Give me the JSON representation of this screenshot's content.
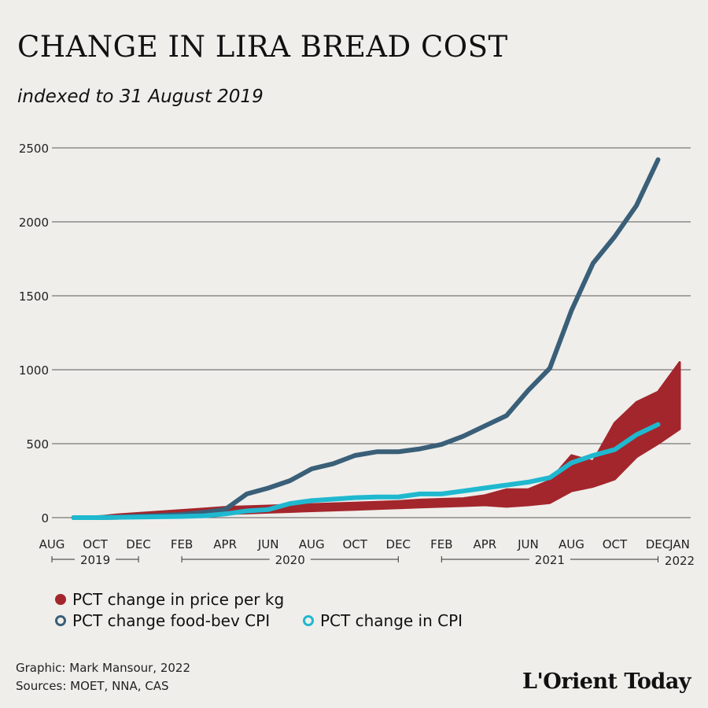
{
  "header": {
    "title": "CHANGE IN LIRA BREAD COST",
    "subtitle": "indexed to 31 August 2019"
  },
  "chart_data": {
    "type": "line",
    "title": "CHANGE IN LIRA BREAD COST",
    "subtitle": "indexed to 31 August 2019",
    "ylim": [
      0,
      2500
    ],
    "yticks": [
      0,
      500,
      1000,
      1500,
      2000,
      2500
    ],
    "grid": true,
    "x_tick_labels": [
      "AUG",
      "OCT",
      "DEC",
      "FEB",
      "APR",
      "JUN",
      "AUG",
      "OCT",
      "DEC",
      "FEB",
      "APR",
      "JUN",
      "AUG",
      "OCT",
      "DEC",
      "JAN"
    ],
    "x_tick_dates": [
      "2019-08",
      "2019-10",
      "2019-12",
      "2020-02",
      "2020-04",
      "2020-06",
      "2020-08",
      "2020-10",
      "2020-12",
      "2021-02",
      "2021-04",
      "2021-06",
      "2021-08",
      "2021-10",
      "2021-12",
      "2022-01"
    ],
    "year_labels": [
      "2019",
      "2020",
      "2021",
      "2022"
    ],
    "series": [
      {
        "name": "PCT change food-bev CPI",
        "style": "line",
        "color": "#3a5f78",
        "x": [
          "2019-09",
          "2019-10",
          "2019-11",
          "2019-12",
          "2020-01",
          "2020-02",
          "2020-03",
          "2020-04",
          "2020-05",
          "2020-06",
          "2020-07",
          "2020-08",
          "2020-09",
          "2020-10",
          "2020-11",
          "2020-12",
          "2021-01",
          "2021-02",
          "2021-03",
          "2021-04",
          "2021-05",
          "2021-06",
          "2021-07",
          "2021-08",
          "2021-09",
          "2021-10",
          "2021-11",
          "2021-12"
        ],
        "values": [
          0,
          0,
          2,
          10,
          15,
          22,
          35,
          55,
          160,
          200,
          250,
          330,
          365,
          420,
          445,
          445,
          465,
          495,
          550,
          620,
          690,
          860,
          1010,
          1400,
          1720,
          1900,
          2110,
          2420
        ]
      },
      {
        "name": "PCT change in CPI",
        "style": "line",
        "color": "#1fb8cf",
        "x": [
          "2019-09",
          "2019-10",
          "2019-11",
          "2019-12",
          "2020-01",
          "2020-02",
          "2020-03",
          "2020-04",
          "2020-05",
          "2020-06",
          "2020-07",
          "2020-08",
          "2020-09",
          "2020-10",
          "2020-11",
          "2020-12",
          "2021-01",
          "2021-02",
          "2021-03",
          "2021-04",
          "2021-05",
          "2021-06",
          "2021-07",
          "2021-08",
          "2021-09",
          "2021-10",
          "2021-11",
          "2021-12"
        ],
        "values": [
          0,
          0,
          2,
          4,
          6,
          8,
          12,
          25,
          45,
          55,
          95,
          115,
          125,
          135,
          140,
          140,
          160,
          160,
          180,
          200,
          220,
          240,
          270,
          370,
          420,
          460,
          560,
          630
        ]
      },
      {
        "name": "PCT change in price per kg",
        "style": "band",
        "color": "#a3262c",
        "x": [
          "2019-09",
          "2019-10",
          "2019-11",
          "2019-12",
          "2020-01",
          "2020-02",
          "2020-03",
          "2020-04",
          "2020-05",
          "2020-06",
          "2020-07",
          "2020-08",
          "2020-09",
          "2020-10",
          "2020-11",
          "2020-12",
          "2021-01",
          "2021-02",
          "2021-03",
          "2021-04",
          "2021-05",
          "2021-06",
          "2021-07",
          "2021-08",
          "2021-09",
          "2021-10",
          "2021-11",
          "2021-12",
          "2022-01"
        ],
        "low": [
          0,
          0,
          5,
          10,
          12,
          15,
          20,
          25,
          30,
          35,
          40,
          45,
          50,
          55,
          60,
          65,
          70,
          75,
          80,
          85,
          75,
          85,
          100,
          180,
          210,
          260,
          410,
          500,
          600
        ],
        "high": [
          0,
          5,
          20,
          30,
          40,
          50,
          60,
          70,
          75,
          80,
          85,
          90,
          95,
          100,
          105,
          110,
          120,
          125,
          130,
          150,
          190,
          190,
          250,
          420,
          380,
          640,
          780,
          850,
          1050
        ]
      }
    ],
    "legend": {
      "placement": "bottom-left",
      "items": [
        "PCT change in price per kg",
        "PCT change food-bev CPI",
        "PCT change in CPI"
      ]
    }
  },
  "footer": {
    "credit": "Graphic: Mark Mansour, 2022",
    "sources": "Sources: MOET, NNA, CAS",
    "logo_text": "L'Orient Today"
  },
  "colors": {
    "background": "#efeeeb",
    "grid": "#5a5a5a",
    "price_per_kg": "#a3262c",
    "food_bev_cpi": "#3a5f78",
    "cpi": "#1fb8cf"
  }
}
